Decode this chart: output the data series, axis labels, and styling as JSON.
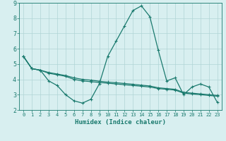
{
  "xlabel": "Humidex (Indice chaleur)",
  "bg_color": "#d8eff0",
  "grid_color": "#b0d5d5",
  "line_color": "#1a7a6e",
  "xlim": [
    -0.5,
    23.5
  ],
  "ylim": [
    2.0,
    9.0
  ],
  "yticks": [
    2,
    3,
    4,
    5,
    6,
    7,
    8,
    9
  ],
  "xticks": [
    0,
    1,
    2,
    3,
    4,
    5,
    6,
    7,
    8,
    9,
    10,
    11,
    12,
    13,
    14,
    15,
    16,
    17,
    18,
    19,
    20,
    21,
    22,
    23
  ],
  "series": [
    [
      5.5,
      4.7,
      4.6,
      3.9,
      3.6,
      3.0,
      2.6,
      2.45,
      2.7,
      3.7,
      5.5,
      6.5,
      7.5,
      8.5,
      8.8,
      8.1,
      5.9,
      3.9,
      4.1,
      3.0,
      3.5,
      3.7,
      3.5,
      2.5
    ],
    [
      5.5,
      4.7,
      4.6,
      4.4,
      4.3,
      4.2,
      4.0,
      3.9,
      3.85,
      3.8,
      3.75,
      3.7,
      3.65,
      3.6,
      3.55,
      3.5,
      3.4,
      3.35,
      3.3,
      3.1,
      3.05,
      3.0,
      2.95,
      2.9
    ],
    [
      5.5,
      4.7,
      4.6,
      4.45,
      4.35,
      4.25,
      4.1,
      4.0,
      3.95,
      3.88,
      3.82,
      3.78,
      3.73,
      3.68,
      3.62,
      3.57,
      3.45,
      3.4,
      3.35,
      3.15,
      3.1,
      3.05,
      3.0,
      2.95
    ]
  ]
}
